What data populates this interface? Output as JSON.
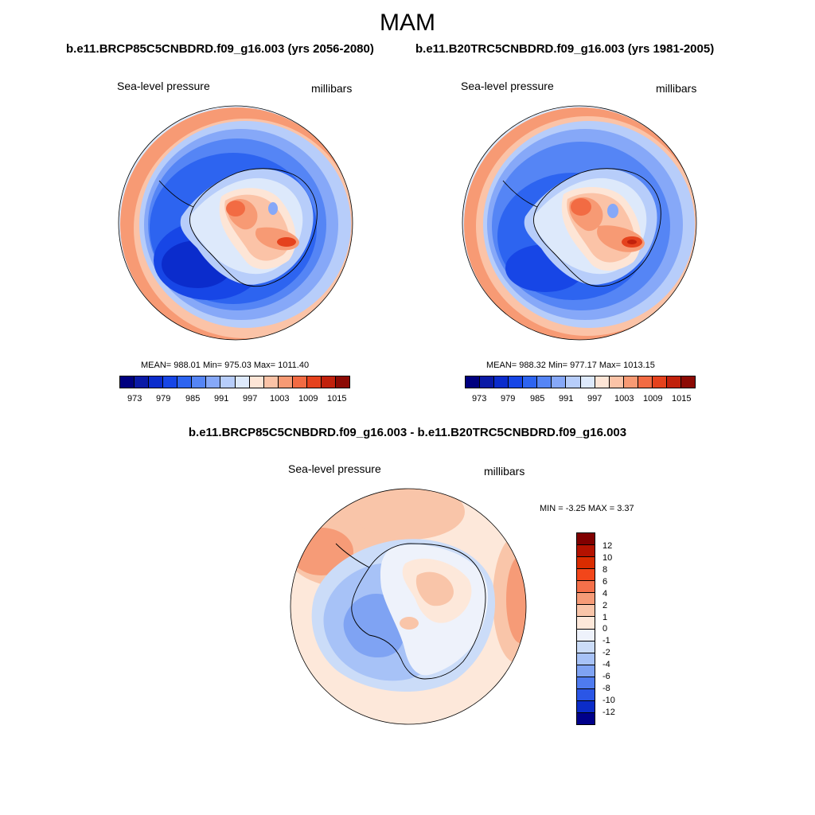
{
  "title": "MAM",
  "panels": [
    {
      "header": "b.e11.BRCP85C5CNBDRD.f09_g16.003 (yrs 2056-2080)",
      "variable": "Sea-level pressure",
      "units": "millibars",
      "stats": "MEAN= 988.01  Min= 975.03  Max= 1011.40",
      "ticks": [
        "973",
        "979",
        "985",
        "991",
        "997",
        "1003",
        "1009",
        "1015"
      ]
    },
    {
      "header": "b.e11.B20TRC5CNBDRD.f09_g16.003 (yrs 1981-2005)",
      "variable": "Sea-level pressure",
      "units": "millibars",
      "stats": "MEAN= 988.32  Min= 977.17  Max= 1013.15",
      "ticks": [
        "973",
        "979",
        "985",
        "991",
        "997",
        "1003",
        "1009",
        "1015"
      ]
    }
  ],
  "difference": {
    "header": "b.e11.BRCP85C5CNBDRD.f09_g16.003 - b.e11.B20TRC5CNBDRD.f09_g16.003",
    "variable": "Sea-level pressure",
    "units": "millibars",
    "stats": "MIN =  -3.25 MAX =   3.37",
    "ticks": [
      "12",
      "10",
      "8",
      "6",
      "4",
      "2",
      "1",
      "0",
      "-1",
      "-2",
      "-4",
      "-6",
      "-8",
      "-10",
      "-12"
    ]
  },
  "colors": {
    "abs_scale": [
      "#00007f",
      "#0a1aa6",
      "#0b2ccc",
      "#1746e6",
      "#2d64f0",
      "#5585f5",
      "#86a8f8",
      "#b7cdfa",
      "#dde9fb",
      "#fde5d6",
      "#fbc3a7",
      "#f79a74",
      "#f26b43",
      "#e5421d",
      "#c1210c",
      "#8c0a04"
    ],
    "diff_scale": [
      "#800000",
      "#b31200",
      "#d92c00",
      "#f2461a",
      "#f5704a",
      "#f69b77",
      "#f9c5a9",
      "#fde8da",
      "#eef2fb",
      "#cbdcf8",
      "#a7c2f7",
      "#7fa3f3",
      "#4f7bef",
      "#2b56e6",
      "#0b2cc8",
      "#00008a"
    ]
  }
}
